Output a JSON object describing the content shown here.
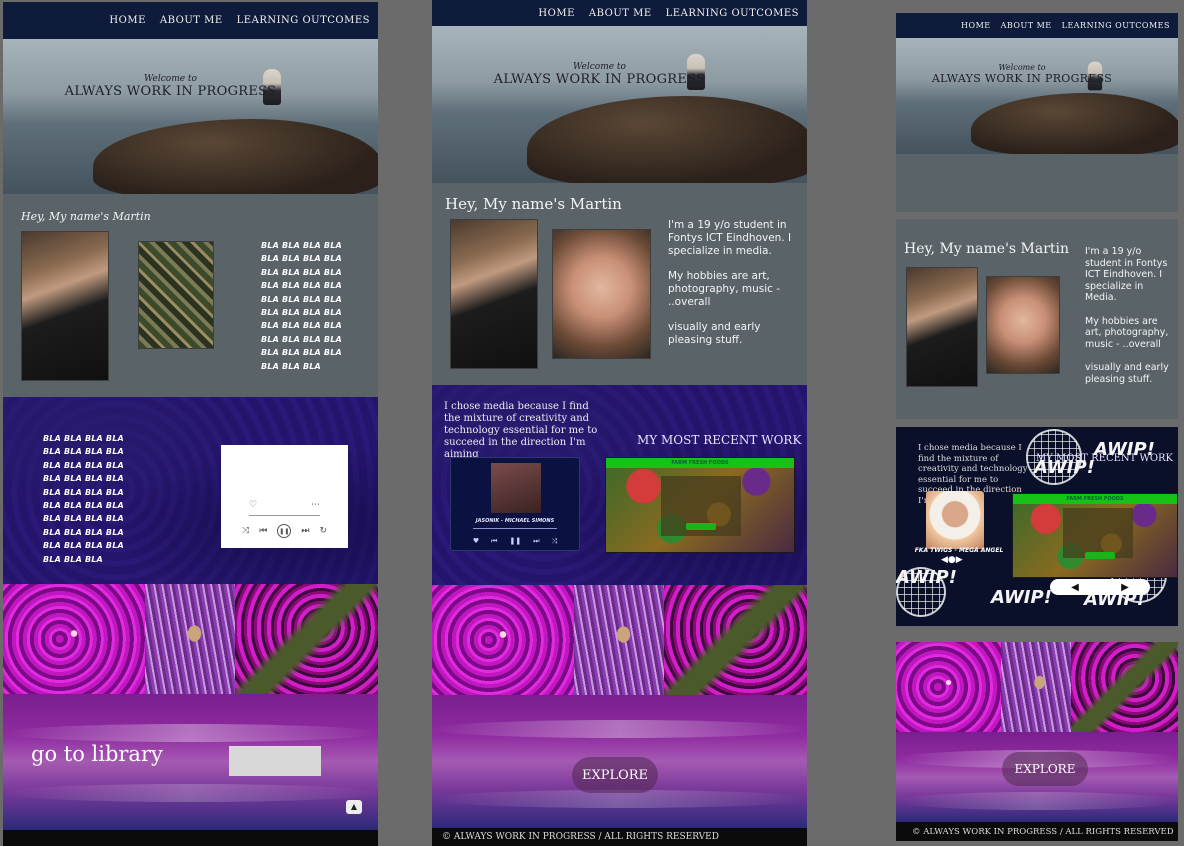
{
  "nav": {
    "home": "HOME",
    "about": "ABOUT ME",
    "learning": "LEARNING OUTCOMES"
  },
  "hero": {
    "welcome": "Welcome to",
    "brand": "ALWAYS WORK IN PROGRESS"
  },
  "about": {
    "greeting_v1": "Hey, My name's Martin",
    "greeting": "Hey, My name's Martin",
    "bla_line": "BLA BLA BLA BLA",
    "bla_last": "BLA BLA BLA",
    "bio_1": "I'm a 19 y/o student in Fontys ICT Eindhoven. I specialize in media.",
    "bio_2": "My hobbies are art, photography, music - ..overall",
    "bio_3": "visually and early pleasing stuff.",
    "bio_1_v3": "I'm a 19 y/o student in Fontys ICT Eindhoven. I specialize in Media."
  },
  "media": {
    "text": "I chose media because I find the mixture of creativity and technology essential for me to succeed in the direction I'm aiming",
    "recent": "MY MOST RECENT WORK",
    "song": "JASONIK - MICHAEL SIMONS",
    "song_v3": "FKA TWIGS - MEGA ANGEL",
    "farm": "FARM FRESH FOODS",
    "farm_btn": "Buy Now",
    "awip": "AWIP!"
  },
  "library": {
    "label": "go to library"
  },
  "explore": {
    "label": "EXPLORE"
  },
  "footer": {
    "text": "© ALWAYS WORK IN PROGRESS / ALL RIGHTS RESERVED",
    "text_v3": "© ALWAYS WORK IN PROGRESS / ALL RIGHTS RESERVED"
  },
  "colors": {
    "nav": "#0e1b3a",
    "about_bg": "#5a6468",
    "media_bg": "#24146b",
    "farm_green": "#15c215"
  }
}
